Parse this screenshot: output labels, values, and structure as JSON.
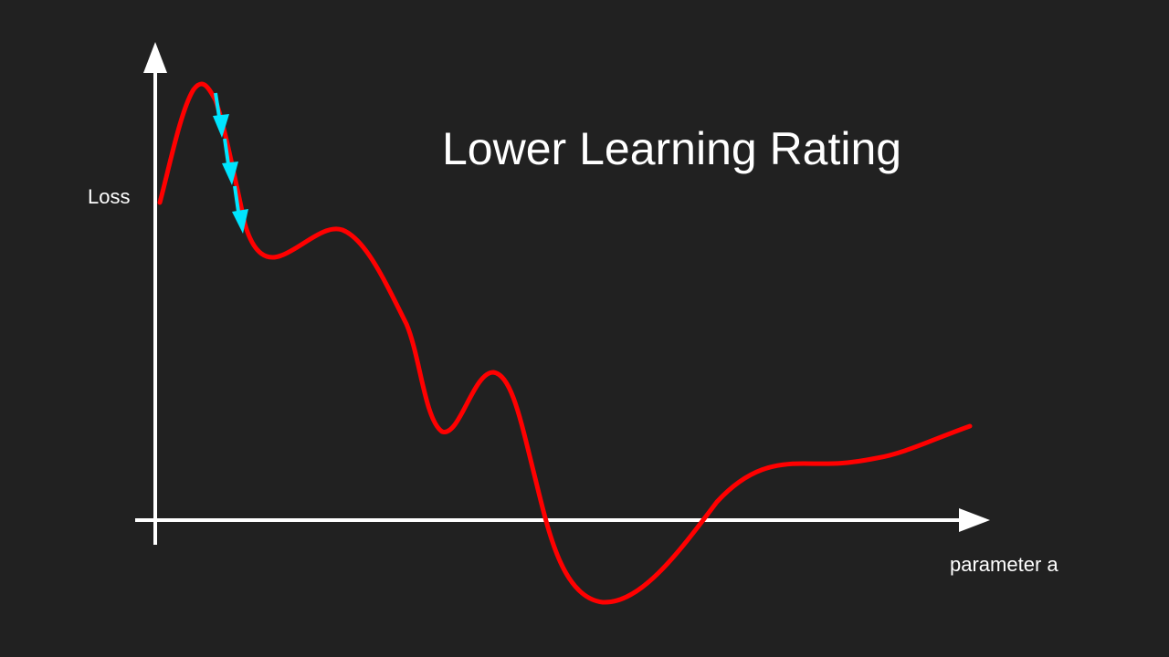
{
  "title": "Lower Learning Rating",
  "axes": {
    "y_label": "Loss",
    "x_label": "parameter a"
  },
  "colors": {
    "background": "#212121",
    "axis": "#ffffff",
    "curve": "#ff0000",
    "steps": "#00e5ff"
  },
  "steps": {
    "count": 3
  }
}
